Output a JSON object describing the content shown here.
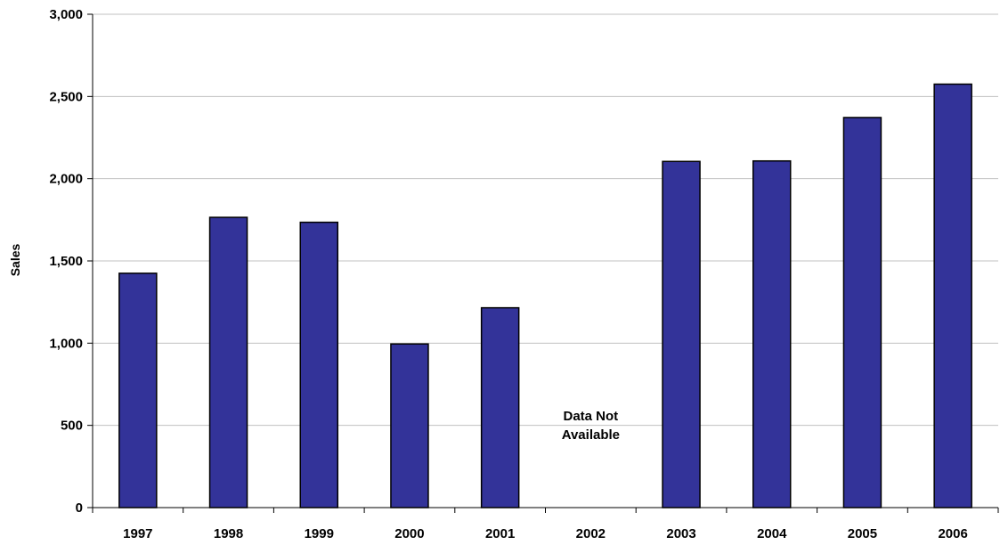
{
  "chart_data": {
    "type": "bar",
    "categories": [
      "1997",
      "1998",
      "1999",
      "2000",
      "2001",
      "2002",
      "2003",
      "2004",
      "2005",
      "2006"
    ],
    "values": [
      1425,
      1765,
      1735,
      995,
      1215,
      null,
      2105,
      2108,
      2372,
      2575
    ],
    "xlabel": "",
    "ylabel": "Sales",
    "ylim": [
      0,
      3000
    ],
    "yticks": [
      0,
      500,
      1000,
      1500,
      2000,
      2500,
      3000
    ],
    "ytick_labels": [
      "0",
      "500",
      "1,000",
      "1,500",
      "2,000",
      "2,500",
      "3,000"
    ],
    "grid": true,
    "bar_color": "#333399",
    "annotations": [
      {
        "category": "2002",
        "lines": [
          "Data Not",
          "Available"
        ]
      }
    ]
  }
}
